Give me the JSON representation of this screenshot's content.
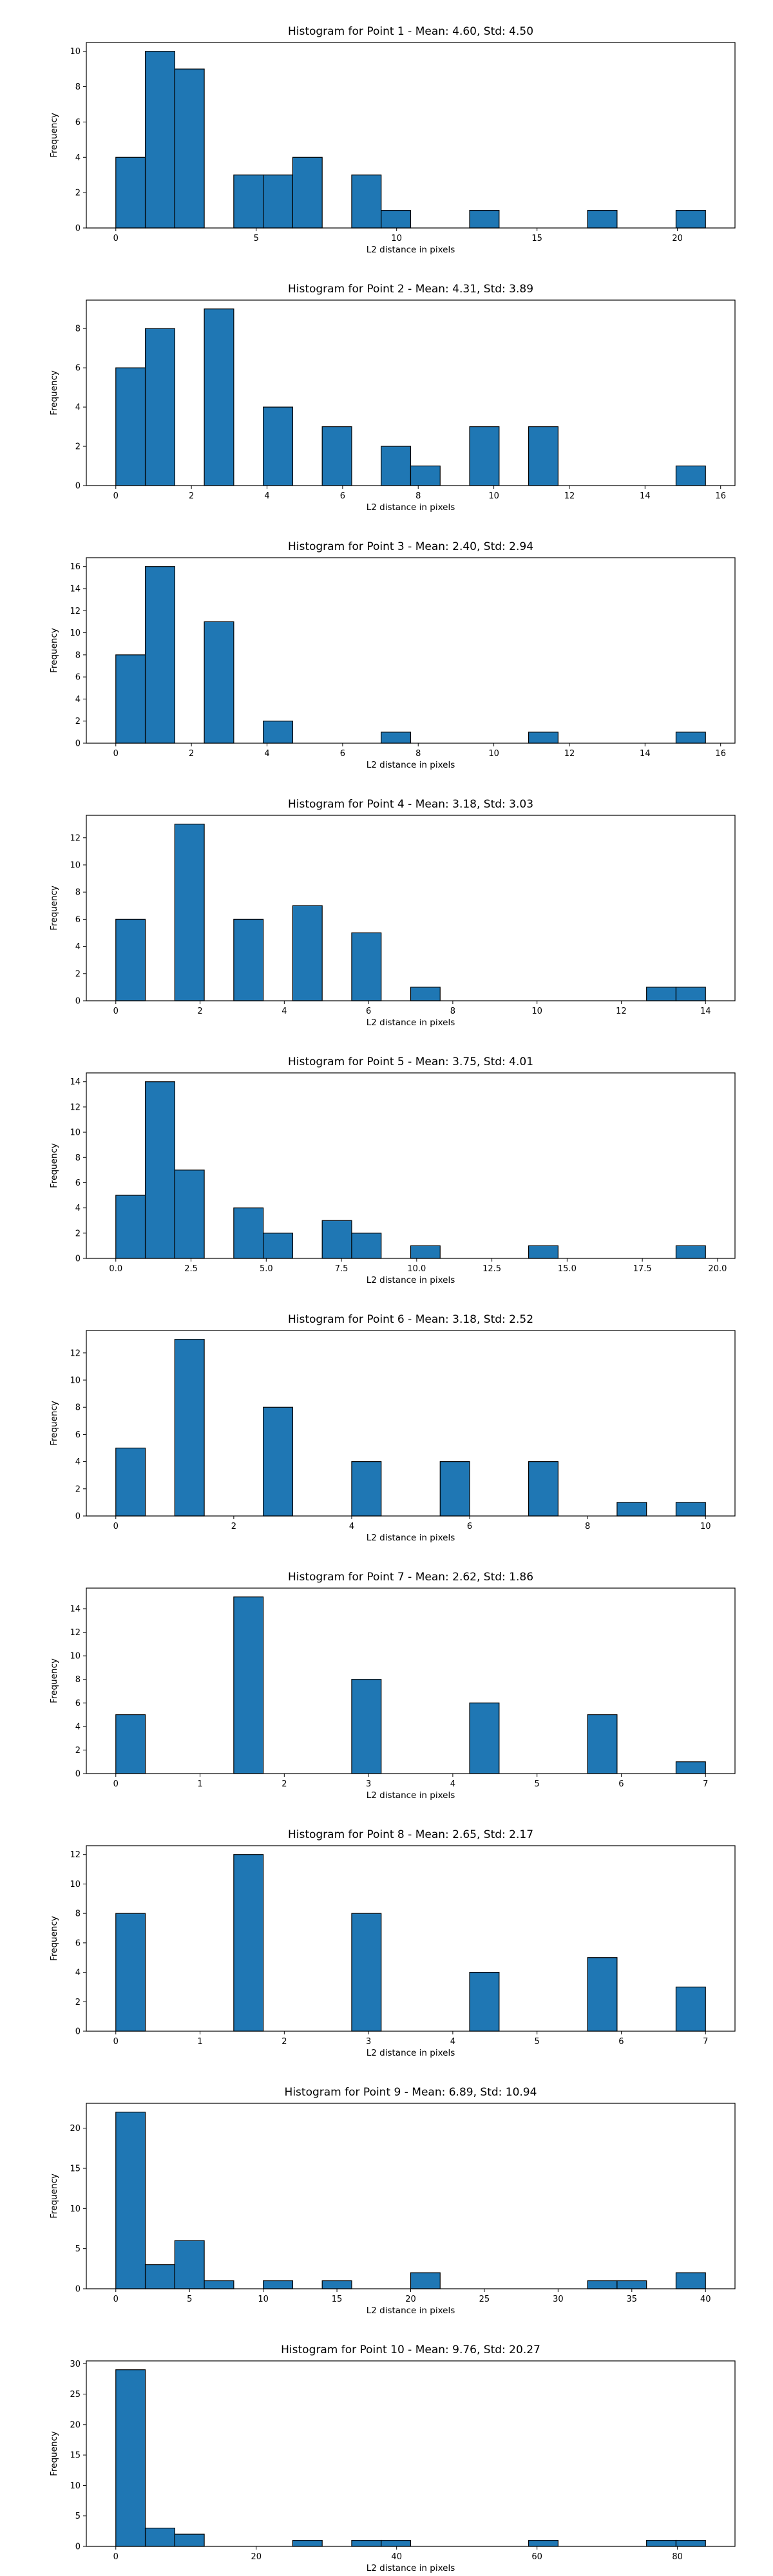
{
  "chart_data": [
    {
      "type": "bar",
      "title": "Histogram for Point 1 - Mean: 4.60, Std: 4.50",
      "xlabel": "L2 distance in pixels",
      "ylabel": "Frequency",
      "xlim": [
        -1.05,
        22.05
      ],
      "ylim": [
        0,
        10.5
      ],
      "xticks": [
        0,
        5,
        10,
        15,
        20
      ],
      "xtick_labels": [
        "0",
        "5",
        "10",
        "15",
        "20"
      ],
      "yticks": [
        0,
        2,
        4,
        6,
        8,
        10
      ],
      "bin_edges": [
        0.0,
        1.05,
        2.1,
        3.15,
        4.2,
        5.25,
        6.3,
        7.35,
        8.4,
        9.45,
        10.5,
        11.55,
        12.6,
        13.65,
        14.7,
        15.75,
        16.8,
        17.85,
        18.9,
        19.95,
        21.0
      ],
      "counts": [
        4,
        10,
        9,
        0,
        3,
        3,
        4,
        0,
        3,
        1,
        0,
        0,
        1,
        0,
        0,
        0,
        1,
        0,
        0,
        1
      ]
    },
    {
      "type": "bar",
      "title": "Histogram for Point 2 - Mean: 4.31, Std: 3.89",
      "xlabel": "L2 distance in pixels",
      "ylabel": "Frequency",
      "xlim": [
        -0.78,
        16.38
      ],
      "ylim": [
        0,
        9.45
      ],
      "xticks": [
        0,
        2,
        4,
        6,
        8,
        10,
        12,
        14,
        16
      ],
      "xtick_labels": [
        "0",
        "2",
        "4",
        "6",
        "8",
        "10",
        "12",
        "14",
        "16"
      ],
      "yticks": [
        0,
        2,
        4,
        6,
        8
      ],
      "bin_edges": [
        0.0,
        0.78,
        1.56,
        2.34,
        3.12,
        3.9,
        4.68,
        5.46,
        6.24,
        7.02,
        7.8,
        8.58,
        9.36,
        10.14,
        10.92,
        11.7,
        12.48,
        13.26,
        14.04,
        14.82,
        15.6
      ],
      "counts": [
        6,
        8,
        0,
        9,
        0,
        4,
        0,
        3,
        0,
        2,
        1,
        0,
        3,
        0,
        3,
        0,
        0,
        0,
        0,
        1
      ]
    },
    {
      "type": "bar",
      "title": "Histogram for Point 3 - Mean: 2.40, Std: 2.94",
      "xlabel": "L2 distance in pixels",
      "ylabel": "Frequency",
      "xlim": [
        -0.78,
        16.38
      ],
      "ylim": [
        0,
        16.8
      ],
      "xticks": [
        0,
        2,
        4,
        6,
        8,
        10,
        12,
        14,
        16
      ],
      "xtick_labels": [
        "0",
        "2",
        "4",
        "6",
        "8",
        "10",
        "12",
        "14",
        "16"
      ],
      "yticks": [
        0,
        2,
        4,
        6,
        8,
        10,
        12,
        14,
        16
      ],
      "bin_edges": [
        0.0,
        0.78,
        1.56,
        2.34,
        3.12,
        3.9,
        4.68,
        5.46,
        6.24,
        7.02,
        7.8,
        8.58,
        9.36,
        10.14,
        10.92,
        11.7,
        12.48,
        13.26,
        14.04,
        14.82,
        15.6
      ],
      "counts": [
        8,
        16,
        0,
        11,
        0,
        2,
        0,
        0,
        0,
        1,
        0,
        0,
        0,
        0,
        1,
        0,
        0,
        0,
        0,
        1
      ]
    },
    {
      "type": "bar",
      "title": "Histogram for Point 4 - Mean: 3.18, Std: 3.03",
      "xlabel": "L2 distance in pixels",
      "ylabel": "Frequency",
      "xlim": [
        -0.7,
        14.7
      ],
      "ylim": [
        0,
        13.65
      ],
      "xticks": [
        0,
        2,
        4,
        6,
        8,
        10,
        12,
        14
      ],
      "xtick_labels": [
        "0",
        "2",
        "4",
        "6",
        "8",
        "10",
        "12",
        "14"
      ],
      "yticks": [
        0,
        2,
        4,
        6,
        8,
        10,
        12
      ],
      "bin_edges": [
        0.0,
        0.7,
        1.4,
        2.1,
        2.8,
        3.5,
        4.2,
        4.9,
        5.6,
        6.3,
        7.0,
        7.7,
        8.4,
        9.1,
        9.8,
        10.5,
        11.2,
        11.9,
        12.6,
        13.3,
        14.0
      ],
      "counts": [
        6,
        0,
        13,
        0,
        6,
        0,
        7,
        0,
        5,
        0,
        1,
        0,
        0,
        0,
        0,
        0,
        0,
        0,
        1,
        1
      ]
    },
    {
      "type": "bar",
      "title": "Histogram for Point 5 - Mean: 3.75, Std: 4.01",
      "xlabel": "L2 distance in pixels",
      "ylabel": "Frequency",
      "xlim": [
        -0.98,
        20.58
      ],
      "ylim": [
        0,
        14.7
      ],
      "xticks": [
        0,
        2.5,
        5,
        7.5,
        10,
        12.5,
        15,
        17.5,
        20
      ],
      "xtick_labels": [
        "0.0",
        "2.5",
        "5.0",
        "7.5",
        "10.0",
        "12.5",
        "15.0",
        "17.5",
        "20.0"
      ],
      "yticks": [
        0,
        2,
        4,
        6,
        8,
        10,
        12,
        14
      ],
      "bin_edges": [
        0.0,
        0.98,
        1.96,
        2.94,
        3.92,
        4.9,
        5.88,
        6.86,
        7.84,
        8.82,
        9.8,
        10.78,
        11.76,
        12.74,
        13.72,
        14.7,
        15.68,
        16.66,
        17.64,
        18.62,
        19.6
      ],
      "counts": [
        5,
        14,
        7,
        0,
        4,
        2,
        0,
        3,
        2,
        0,
        1,
        0,
        0,
        0,
        1,
        0,
        0,
        0,
        0,
        1
      ]
    },
    {
      "type": "bar",
      "title": "Histogram for Point 6 - Mean: 3.18, Std: 2.52",
      "xlabel": "L2 distance in pixels",
      "ylabel": "Frequency",
      "xlim": [
        -0.5,
        10.5
      ],
      "ylim": [
        0,
        13.65
      ],
      "xticks": [
        0,
        2,
        4,
        6,
        8,
        10
      ],
      "xtick_labels": [
        "0",
        "2",
        "4",
        "6",
        "8",
        "10"
      ],
      "yticks": [
        0,
        2,
        4,
        6,
        8,
        10,
        12
      ],
      "bin_edges": [
        0.0,
        0.5,
        1.0,
        1.5,
        2.0,
        2.5,
        3.0,
        3.5,
        4.0,
        4.5,
        5.0,
        5.5,
        6.0,
        6.5,
        7.0,
        7.5,
        8.0,
        8.5,
        9.0,
        9.5,
        10.0
      ],
      "counts": [
        5,
        0,
        13,
        0,
        0,
        8,
        0,
        0,
        4,
        0,
        0,
        4,
        0,
        0,
        4,
        0,
        0,
        1,
        0,
        1
      ]
    },
    {
      "type": "bar",
      "title": "Histogram for Point 7 - Mean: 2.62, Std: 1.86",
      "xlabel": "L2 distance in pixels",
      "ylabel": "Frequency",
      "xlim": [
        -0.35,
        7.35
      ],
      "ylim": [
        0,
        15.75
      ],
      "xticks": [
        0,
        1,
        2,
        3,
        4,
        5,
        6,
        7
      ],
      "xtick_labels": [
        "0",
        "1",
        "2",
        "3",
        "4",
        "5",
        "6",
        "7"
      ],
      "yticks": [
        0,
        2,
        4,
        6,
        8,
        10,
        12,
        14
      ],
      "bin_edges": [
        0.0,
        0.35,
        0.7,
        1.05,
        1.4,
        1.75,
        2.1,
        2.45,
        2.8,
        3.15,
        3.5,
        3.85,
        4.2,
        4.55,
        4.9,
        5.25,
        5.6,
        5.95,
        6.3,
        6.65,
        7.0
      ],
      "counts": [
        5,
        0,
        0,
        0,
        15,
        0,
        0,
        0,
        8,
        0,
        0,
        0,
        6,
        0,
        0,
        0,
        5,
        0,
        0,
        1
      ]
    },
    {
      "type": "bar",
      "title": "Histogram for Point 8 - Mean: 2.65, Std: 2.17",
      "xlabel": "L2 distance in pixels",
      "ylabel": "Frequency",
      "xlim": [
        -0.35,
        7.35
      ],
      "ylim": [
        0,
        12.6
      ],
      "xticks": [
        0,
        1,
        2,
        3,
        4,
        5,
        6,
        7
      ],
      "xtick_labels": [
        "0",
        "1",
        "2",
        "3",
        "4",
        "5",
        "6",
        "7"
      ],
      "yticks": [
        0,
        2,
        4,
        6,
        8,
        10,
        12
      ],
      "bin_edges": [
        0.0,
        0.35,
        0.7,
        1.05,
        1.4,
        1.75,
        2.1,
        2.45,
        2.8,
        3.15,
        3.5,
        3.85,
        4.2,
        4.55,
        4.9,
        5.25,
        5.6,
        5.95,
        6.3,
        6.65,
        7.0
      ],
      "counts": [
        8,
        0,
        0,
        0,
        12,
        0,
        0,
        0,
        8,
        0,
        0,
        0,
        4,
        0,
        0,
        0,
        5,
        0,
        0,
        3
      ]
    },
    {
      "type": "bar",
      "title": "Histogram for Point 9 - Mean: 6.89, Std: 10.94",
      "xlabel": "L2 distance in pixels",
      "ylabel": "Frequency",
      "xlim": [
        -2.0,
        42.0
      ],
      "ylim": [
        0,
        23.1
      ],
      "xticks": [
        0,
        5,
        10,
        15,
        20,
        25,
        30,
        35,
        40
      ],
      "xtick_labels": [
        "0",
        "5",
        "10",
        "15",
        "20",
        "25",
        "30",
        "35",
        "40"
      ],
      "yticks": [
        0,
        5,
        10,
        15,
        20
      ],
      "bin_edges": [
        0.0,
        2.0,
        4.0,
        6.0,
        8.0,
        10.0,
        12.0,
        14.0,
        16.0,
        18.0,
        20.0,
        22.0,
        24.0,
        26.0,
        28.0,
        30.0,
        32.0,
        34.0,
        36.0,
        38.0,
        40.0
      ],
      "counts": [
        22,
        3,
        6,
        1,
        0,
        1,
        0,
        1,
        0,
        0,
        2,
        0,
        0,
        0,
        0,
        0,
        1,
        1,
        0,
        2
      ]
    },
    {
      "type": "bar",
      "title": "Histogram for Point 10 - Mean: 9.76, Std: 20.27",
      "xlabel": "L2 distance in pixels",
      "ylabel": "Frequency",
      "xlim": [
        -4.2,
        88.2
      ],
      "ylim": [
        0,
        30.45
      ],
      "xticks": [
        0,
        20,
        40,
        60,
        80
      ],
      "xtick_labels": [
        "0",
        "20",
        "40",
        "60",
        "80"
      ],
      "yticks": [
        0,
        5,
        10,
        15,
        20,
        25,
        30
      ],
      "bin_edges": [
        0.0,
        4.2,
        8.4,
        12.6,
        16.8,
        21.0,
        25.2,
        29.4,
        33.6,
        37.8,
        42.0,
        46.2,
        50.4,
        54.6,
        58.8,
        63.0,
        67.2,
        71.4,
        75.6,
        79.8,
        84.0
      ],
      "counts": [
        29,
        3,
        2,
        0,
        0,
        0,
        1,
        0,
        1,
        1,
        0,
        0,
        0,
        0,
        1,
        0,
        0,
        0,
        1,
        1
      ]
    }
  ],
  "colors": {
    "bar_fill": "#1f77b4",
    "bar_edge": "#000000",
    "axis": "#000000"
  }
}
